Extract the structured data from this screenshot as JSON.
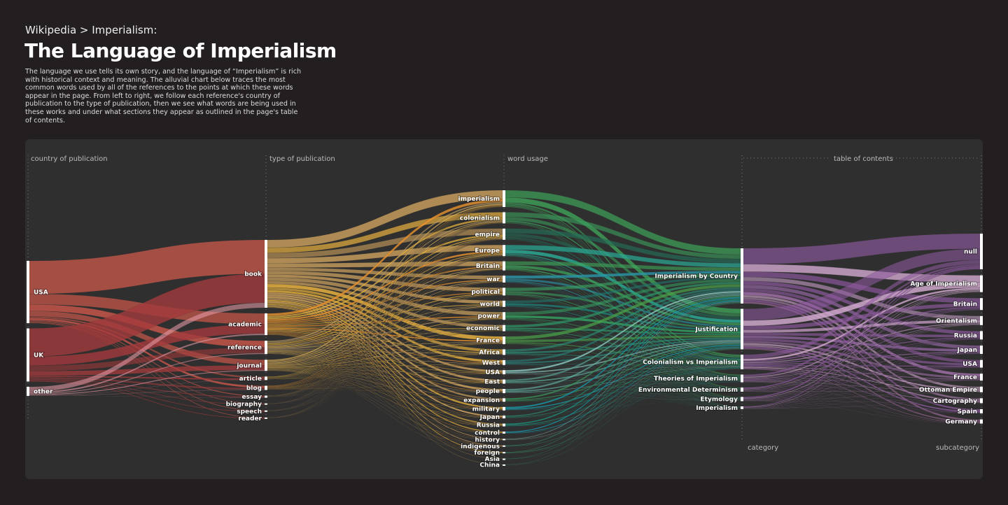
{
  "header": {
    "breadcrumb": "Wikipedia > Imperialism:",
    "title": "The Language of Imperialism",
    "description": "The language we use tells its own story, and the language of “Imperialism” is rich with historical context and meaning. The alluvial chart below traces the most common words used by all of the references to the points at which these words appear in the page. From left to right, we follow each reference's country of publication to the type of publication, then we see what words are being used in these works and under what sections they appear as outlined in the page's table of contents."
  },
  "chart_data": {
    "type": "alluvial",
    "columns": [
      {
        "header": "country of publication",
        "nodes": [
          {
            "label": "USA",
            "value": 89,
            "color": "#c9574a"
          },
          {
            "label": "UK",
            "value": 76,
            "color": "#a23a3c"
          },
          {
            "label": "other",
            "value": 13,
            "color": "#e69aa6"
          }
        ]
      },
      {
        "header": "type of publication",
        "nodes": [
          {
            "label": "book",
            "value": 97,
            "color": "#d9aa62"
          },
          {
            "label": "academic",
            "value": 31,
            "color": "#e8932f"
          },
          {
            "label": "reference",
            "value": 19,
            "color": "#c9a66a"
          },
          {
            "label": "journal",
            "value": 16,
            "color": "#e2b55a"
          },
          {
            "label": "article",
            "value": 5,
            "color": "#f0b840"
          },
          {
            "label": "blog",
            "value": 6,
            "color": "#e8932f"
          },
          {
            "label": "essay",
            "value": 3,
            "color": "#d9aa62"
          },
          {
            "label": "biography",
            "value": 2,
            "color": "#d9aa62"
          },
          {
            "label": "speech",
            "value": 2,
            "color": "#d9aa62"
          },
          {
            "label": "reader",
            "value": 2,
            "color": "#d9aa62"
          }
        ]
      },
      {
        "header": "word usage",
        "nodes": [
          {
            "label": "imperialism",
            "value": 24,
            "color": "#3fa55a"
          },
          {
            "label": "colonialism",
            "value": 16,
            "color": "#3a9a5a"
          },
          {
            "label": "empire",
            "value": 16,
            "color": "#246b55"
          },
          {
            "label": "Europe",
            "value": 16,
            "color": "#2aa894"
          },
          {
            "label": "Britain",
            "value": 13,
            "color": "#3fa55a"
          },
          {
            "label": "war",
            "value": 10,
            "color": "#2a96a8"
          },
          {
            "label": "political",
            "value": 11,
            "color": "#3aa060"
          },
          {
            "label": "world",
            "value": 9,
            "color": "#1f7a72"
          },
          {
            "label": "power",
            "value": 11,
            "color": "#35a060"
          },
          {
            "label": "economic",
            "value": 9,
            "color": "#2e9a6a"
          },
          {
            "label": "France",
            "value": 11,
            "color": "#4aa048"
          },
          {
            "label": "Africa",
            "value": 8,
            "color": "#2a9a80"
          },
          {
            "label": "West",
            "value": 7,
            "color": "#2a8a80"
          },
          {
            "label": "USA",
            "value": 6,
            "color": "#8ac8c0"
          },
          {
            "label": "East",
            "value": 6,
            "color": "#5aa898"
          },
          {
            "label": "people",
            "value": 6,
            "color": "#6ac0b0"
          },
          {
            "label": "expansion",
            "value": 5,
            "color": "#3aa060"
          },
          {
            "label": "military",
            "value": 5,
            "color": "#1a9aa8"
          },
          {
            "label": "Japan",
            "value": 4,
            "color": "#2a8a70"
          },
          {
            "label": "Russia",
            "value": 4,
            "color": "#1aa890"
          },
          {
            "label": "control",
            "value": 3,
            "color": "#1aa8c0"
          },
          {
            "label": "history",
            "value": 2,
            "color": "#8abab0"
          },
          {
            "label": "indigenous",
            "value": 2,
            "color": "#3a9a80"
          },
          {
            "label": "foreign",
            "value": 2,
            "color": "#3aa070"
          },
          {
            "label": "Asia",
            "value": 1,
            "color": "#2a9a70"
          },
          {
            "label": "China",
            "value": 1,
            "color": "#3a9a70"
          }
        ]
      },
      {
        "header": "table of contents",
        "sublabel": "category",
        "nodes": [
          {
            "label": "Imperialism by Country",
            "value": 79,
            "color": "#8e5aa0"
          },
          {
            "label": "Justification",
            "value": 58,
            "color": "#d3a9cf"
          },
          {
            "label": "Colonialism vs Imperialism",
            "value": 21,
            "color": "#9a6aaa"
          },
          {
            "label": "Theories of Imperialism",
            "value": 11,
            "color": "#b88ab8"
          },
          {
            "label": "Environmental Determinism",
            "value": 6,
            "color": "#c08ab0"
          },
          {
            "label": "Etymology",
            "value": 6,
            "color": "#a06a9a"
          },
          {
            "label": "Imperialism",
            "value": 4,
            "color": "#8e5aa0"
          }
        ]
      },
      {
        "header": "",
        "sublabel": "subcategory",
        "nodes": [
          {
            "label": "null",
            "value": 51
          },
          {
            "label": "Age of Imperialism",
            "value": 24
          },
          {
            "label": "Britain",
            "value": 17
          },
          {
            "label": "Orientalism",
            "value": 13
          },
          {
            "label": "Russia",
            "value": 12
          },
          {
            "label": "Japan",
            "value": 12
          },
          {
            "label": "USA",
            "value": 11
          },
          {
            "label": "France",
            "value": 10
          },
          {
            "label": "Ottoman Empire",
            "value": 8
          },
          {
            "label": "Cartography",
            "value": 7
          },
          {
            "label": "Spain",
            "value": 6
          },
          {
            "label": "Germany",
            "value": 6
          }
        ]
      }
    ]
  }
}
